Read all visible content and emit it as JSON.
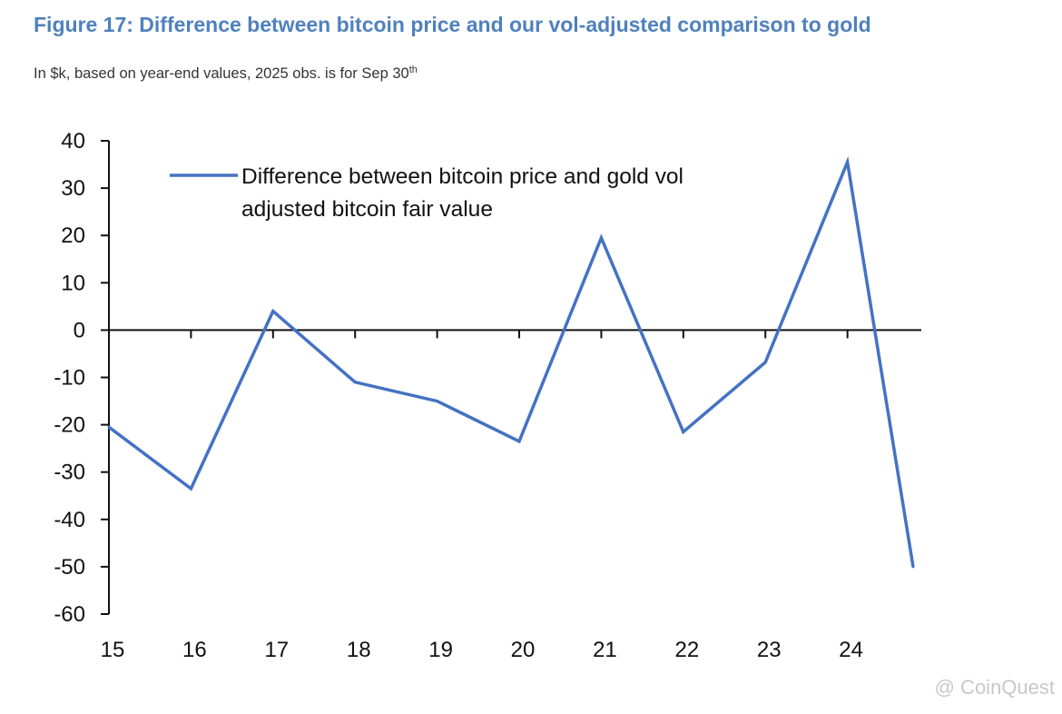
{
  "figure": {
    "title": "Figure 17: Difference between bitcoin price and our vol-adjusted comparison to gold",
    "subtitle_main": "In $k, based on year-end values, 2025 obs. is for Sep 30",
    "subtitle_sup": "th"
  },
  "chart_data": {
    "type": "line",
    "title": "Figure 17: Difference between bitcoin price and our vol-adjusted comparison to gold",
    "subtitle": "In $k, based on year-end values, 2025 obs. is for Sep 30th",
    "x_tick_labels": [
      "15",
      "16",
      "17",
      "18",
      "19",
      "20",
      "21",
      "22",
      "23",
      "24"
    ],
    "x": [
      15,
      16,
      17,
      18,
      19,
      20,
      21,
      22,
      23,
      24,
      24.8
    ],
    "series": [
      {
        "name": "Difference between bitcoin price and gold vol adjusted bitcoin fair value",
        "legend_lines": [
          "Difference between bitcoin price and gold vol",
          "adjusted bitcoin fair value"
        ],
        "color": "#4472c4",
        "values": [
          -20.5,
          -33.5,
          4,
          -11,
          -15,
          -23.5,
          19.5,
          -21.5,
          -6.8,
          35.5,
          -50
        ]
      }
    ],
    "ylim": [
      -60,
      40
    ],
    "y_ticks": [
      40,
      30,
      20,
      10,
      0,
      -10,
      -20,
      -30,
      -40,
      -50,
      -60
    ],
    "legend": "top-left",
    "grid": false
  },
  "watermark": {
    "text": "@ CoinQuest"
  }
}
